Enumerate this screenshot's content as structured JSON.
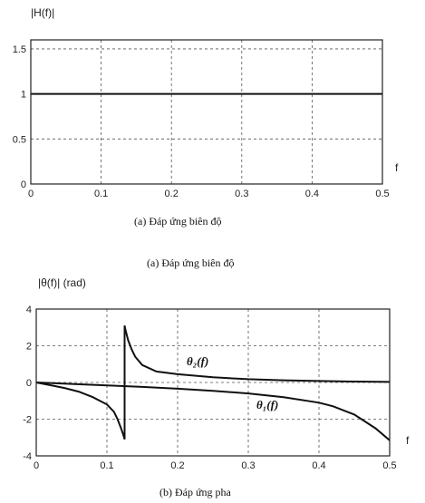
{
  "figures": {
    "caption_a_repeat": "(a) Đáp ứng biên độ"
  },
  "chart_data": [
    {
      "type": "line",
      "ylabel": "|H(f)|",
      "xlabel": "f",
      "xlim": [
        0,
        0.5
      ],
      "ylim": [
        0,
        1.6
      ],
      "xticks": [
        "0",
        "0.1",
        "0.2",
        "0.3",
        "0.4",
        "0.5"
      ],
      "yticks": [
        "0",
        "0.5",
        "1",
        "1.5"
      ],
      "grid": true,
      "caption": "(a) Đáp ứng biên độ",
      "series": [
        {
          "x": [
            0,
            0.5
          ],
          "values": [
            1,
            1
          ]
        }
      ]
    },
    {
      "type": "line",
      "ylabel": "|θ(f)| (rad)",
      "xlabel": "f",
      "xlim": [
        0,
        0.5
      ],
      "ylim": [
        -4,
        4
      ],
      "xticks": [
        "0",
        "0.1",
        "0.2",
        "0.3",
        "0.4",
        "0.5"
      ],
      "yticks": [
        "4",
        "2",
        "0",
        "-2",
        "-4"
      ],
      "grid": true,
      "caption": "(b) Đáp ứng pha",
      "series": [
        {
          "name": "θ₂(f)",
          "x": [
            0,
            0.02,
            0.04,
            0.06,
            0.08,
            0.1,
            0.11,
            0.115,
            0.12,
            0.124,
            0.125,
            0.125,
            0.126,
            0.13,
            0.135,
            0.14,
            0.15,
            0.17,
            0.2,
            0.25,
            0.3,
            0.35,
            0.4,
            0.45,
            0.5
          ],
          "values": [
            0,
            -0.15,
            -0.3,
            -0.5,
            -0.8,
            -1.2,
            -1.6,
            -2.0,
            -2.5,
            -2.95,
            -3.1,
            3.1,
            2.9,
            2.3,
            1.8,
            1.4,
            0.95,
            0.6,
            0.45,
            0.28,
            0.18,
            0.12,
            0.08,
            0.05,
            0.03
          ]
        },
        {
          "name": "θ₁(f)",
          "x": [
            0,
            0.05,
            0.1,
            0.15,
            0.2,
            0.25,
            0.3,
            0.35,
            0.4,
            0.42,
            0.45,
            0.48,
            0.5
          ],
          "values": [
            0,
            -0.08,
            -0.16,
            -0.24,
            -0.34,
            -0.46,
            -0.6,
            -0.8,
            -1.1,
            -1.3,
            -1.75,
            -2.5,
            -3.15
          ]
        }
      ],
      "annotations": [
        "θ₂(f)",
        "θ₁(f)"
      ]
    }
  ]
}
